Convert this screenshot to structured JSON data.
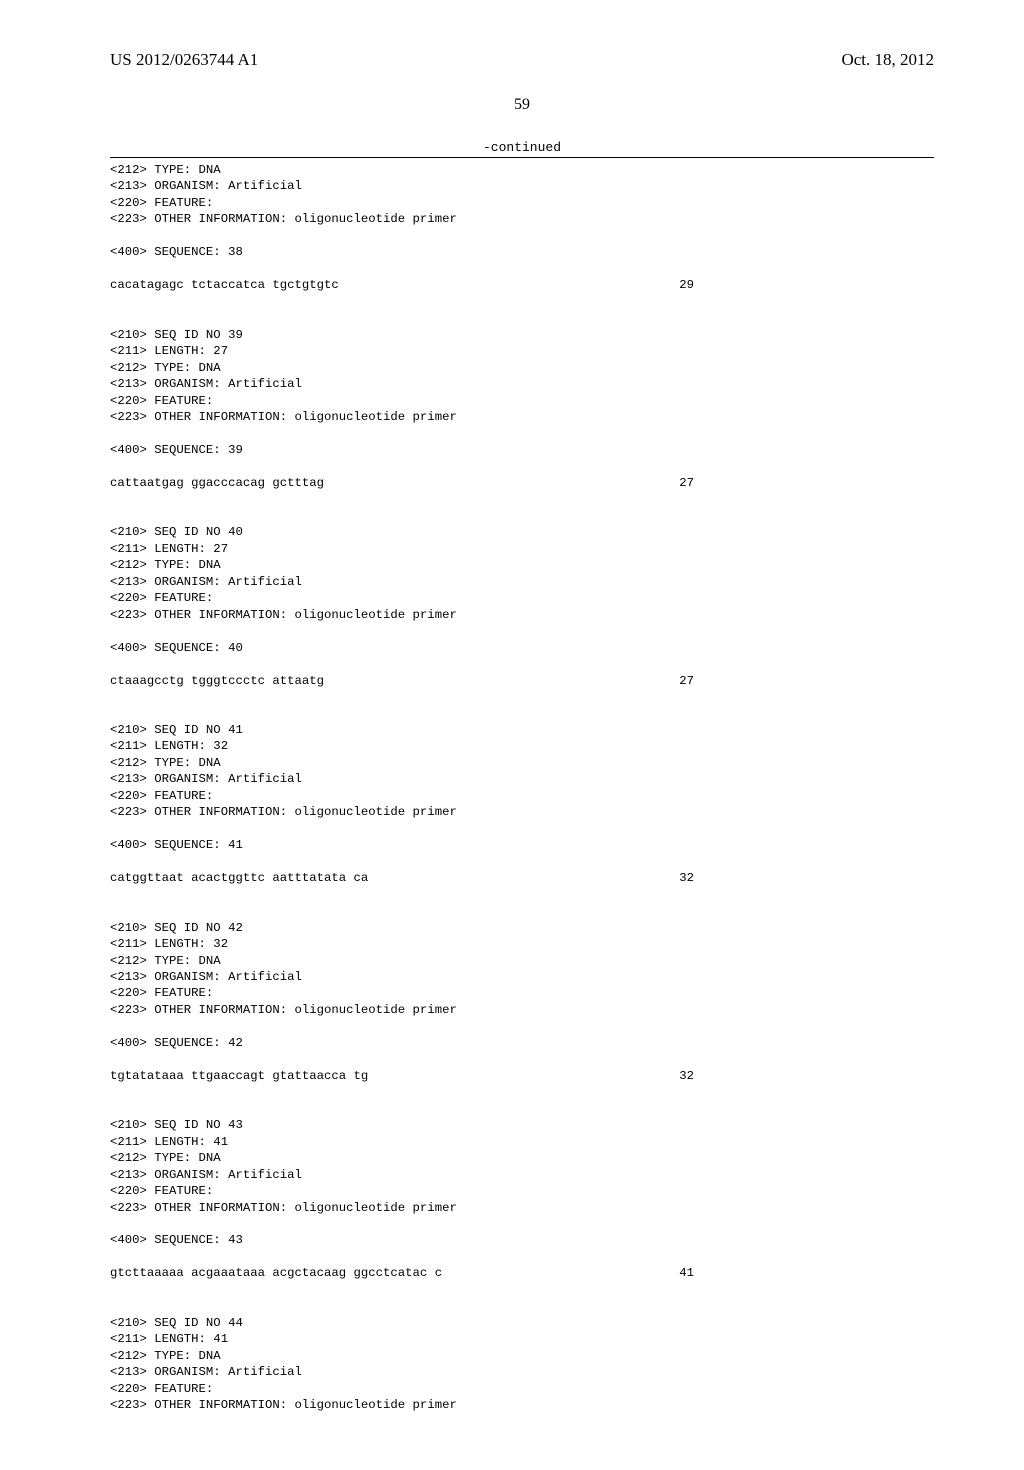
{
  "header": {
    "left": "US 2012/0263744 A1",
    "right": "Oct. 18, 2012"
  },
  "page_number": "59",
  "continued_label": "-continued",
  "blocks": [
    {
      "lines": [
        "<212> TYPE: DNA",
        "<213> ORGANISM: Artificial",
        "<220> FEATURE:",
        "<223> OTHER INFORMATION: oligonucleotide primer"
      ]
    },
    {
      "lines": [
        "<400> SEQUENCE: 38"
      ]
    },
    {
      "seq": "cacatagagc tctaccatca tgctgtgtc",
      "num": "29"
    },
    {
      "lines": [
        "<210> SEQ ID NO 39",
        "<211> LENGTH: 27",
        "<212> TYPE: DNA",
        "<213> ORGANISM: Artificial",
        "<220> FEATURE:",
        "<223> OTHER INFORMATION: oligonucleotide primer"
      ]
    },
    {
      "lines": [
        "<400> SEQUENCE: 39"
      ]
    },
    {
      "seq": "cattaatgag ggacccacag gctttag",
      "num": "27"
    },
    {
      "lines": [
        "<210> SEQ ID NO 40",
        "<211> LENGTH: 27",
        "<212> TYPE: DNA",
        "<213> ORGANISM: Artificial",
        "<220> FEATURE:",
        "<223> OTHER INFORMATION: oligonucleotide primer"
      ]
    },
    {
      "lines": [
        "<400> SEQUENCE: 40"
      ]
    },
    {
      "seq": "ctaaagcctg tgggtccctc attaatg",
      "num": "27"
    },
    {
      "lines": [
        "<210> SEQ ID NO 41",
        "<211> LENGTH: 32",
        "<212> TYPE: DNA",
        "<213> ORGANISM: Artificial",
        "<220> FEATURE:",
        "<223> OTHER INFORMATION: oligonucleotide primer"
      ]
    },
    {
      "lines": [
        "<400> SEQUENCE: 41"
      ]
    },
    {
      "seq": "catggttaat acactggttc aatttatata ca",
      "num": "32"
    },
    {
      "lines": [
        "<210> SEQ ID NO 42",
        "<211> LENGTH: 32",
        "<212> TYPE: DNA",
        "<213> ORGANISM: Artificial",
        "<220> FEATURE:",
        "<223> OTHER INFORMATION: oligonucleotide primer"
      ]
    },
    {
      "lines": [
        "<400> SEQUENCE: 42"
      ]
    },
    {
      "seq": "tgtatataaa ttgaaccagt gtattaacca tg",
      "num": "32"
    },
    {
      "lines": [
        "<210> SEQ ID NO 43",
        "<211> LENGTH: 41",
        "<212> TYPE: DNA",
        "<213> ORGANISM: Artificial",
        "<220> FEATURE:",
        "<223> OTHER INFORMATION: oligonucleotide primer"
      ]
    },
    {
      "lines": [
        "<400> SEQUENCE: 43"
      ]
    },
    {
      "seq": "gtcttaaaaa acgaaataaa acgctacaag ggcctcatac c",
      "num": "41"
    },
    {
      "lines": [
        "<210> SEQ ID NO 44",
        "<211> LENGTH: 41",
        "<212> TYPE: DNA",
        "<213> ORGANISM: Artificial",
        "<220> FEATURE:",
        "<223> OTHER INFORMATION: oligonucleotide primer"
      ]
    }
  ]
}
